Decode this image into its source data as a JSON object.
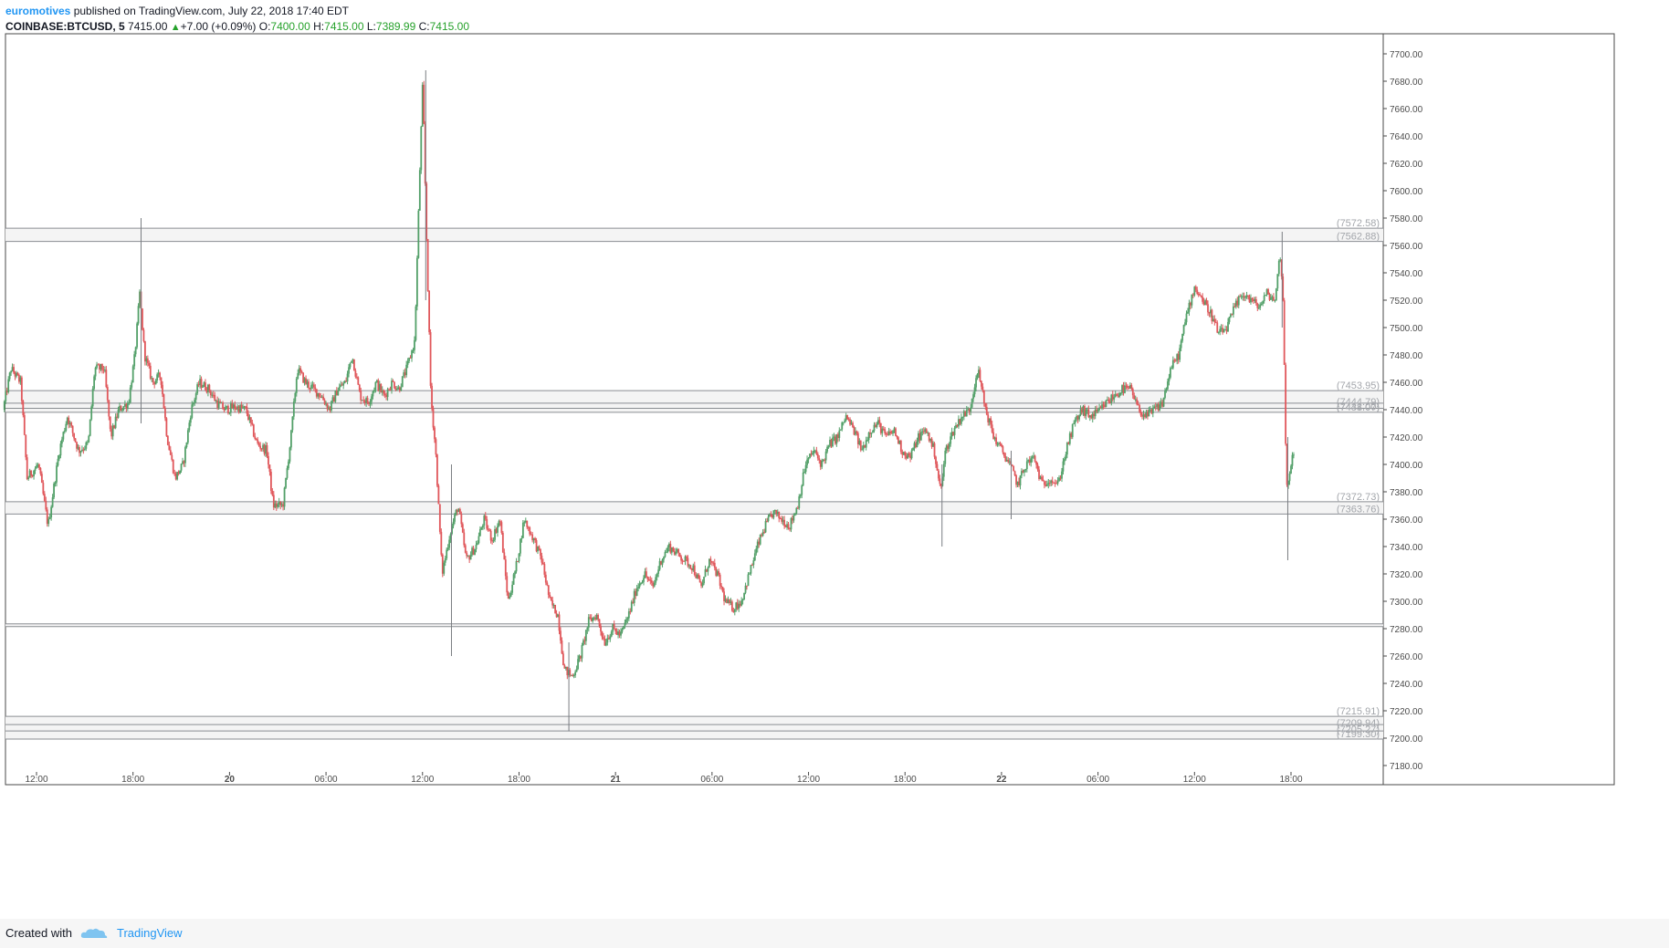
{
  "header": {
    "author": "euromotives",
    "published": "published on TradingView.com, July 22, 2018 17:40 EDT",
    "symbol": "COINBASE:BTCUSD, 5",
    "last": "7415.00",
    "change": "+7.00 (+0.09%)",
    "o_label": "O:",
    "o_value": "7400.00",
    "h_label": "H:",
    "h_value": "7415.00",
    "l_label": "L:",
    "l_value": "7389.99",
    "c_label": "C:",
    "c_value": "7415.00"
  },
  "footer": {
    "created_with": "Created with",
    "brand": "TradingView"
  },
  "colors": {
    "up": "#53a069",
    "down": "#e0575b",
    "band": "#f4f4f4",
    "level_text": "#a3a6ab"
  },
  "chart_data": {
    "type": "candlestick",
    "title": "",
    "xlabel": "",
    "ylabel": "",
    "ylim": [
      7180,
      7700
    ],
    "y_ticks": [
      7180,
      7200,
      7220,
      7240,
      7260,
      7280,
      7300,
      7320,
      7340,
      7360,
      7380,
      7400,
      7420,
      7440,
      7460,
      7480,
      7500,
      7520,
      7540,
      7560,
      7580,
      7600,
      7620,
      7640,
      7660,
      7680,
      7700
    ],
    "x_range_hours": [
      -3.4,
      82.0
    ],
    "x_ticks": [
      {
        "t": 12,
        "label": "12:00"
      },
      {
        "t": 18,
        "label": "18:00"
      },
      {
        "t": 24,
        "label": "20"
      },
      {
        "t": 30,
        "label": "06:00"
      },
      {
        "t": 36,
        "label": "12:00"
      },
      {
        "t": 42,
        "label": "18:00"
      },
      {
        "t": 48,
        "label": "21"
      },
      {
        "t": 54,
        "label": "06:00"
      },
      {
        "t": 60,
        "label": "12:00"
      },
      {
        "t": 66,
        "label": "18:00"
      },
      {
        "t": 72,
        "label": "22"
      },
      {
        "t": 78,
        "label": "06:00"
      },
      {
        "t": 84,
        "label": "12:00"
      },
      {
        "t": 90,
        "label": "18:00"
      }
    ],
    "bands": [
      {
        "low": 7562.88,
        "high": 7572.58,
        "label_low": "(7562.88)",
        "label_high": "(7572.58)"
      },
      {
        "low": 7438.07,
        "high": 7453.95,
        "label_low": "(7438.07)",
        "label_high": "(7453.95)"
      },
      {
        "low": 7363.76,
        "high": 7372.73,
        "label_low": "(7363.76)",
        "label_high": "(7372.73)"
      },
      {
        "low": 7281.5,
        "high": 7283.5,
        "label_low": "",
        "label_high": ""
      },
      {
        "low": 7199.3,
        "high": 7215.91,
        "label_low": "(7199.30)",
        "label_high": "(7215.91)"
      }
    ],
    "extra_levels": [
      {
        "value": 7444.79,
        "label": "(7444.79)"
      },
      {
        "value": 7441.0,
        "label": "(7441.00)"
      },
      {
        "value": 7209.94,
        "label": "(7209.94)"
      },
      {
        "value": 7205.27,
        "label": "(7205.27)"
      }
    ],
    "price_path": [
      {
        "t": 10.0,
        "p": 7440
      },
      {
        "t": 10.5,
        "p": 7470
      },
      {
        "t": 11.1,
        "p": 7460
      },
      {
        "t": 11.5,
        "p": 7390
      },
      {
        "t": 12.2,
        "p": 7400
      },
      {
        "t": 12.8,
        "p": 7355
      },
      {
        "t": 13.5,
        "p": 7410
      },
      {
        "t": 14.0,
        "p": 7435
      },
      {
        "t": 14.7,
        "p": 7410
      },
      {
        "t": 15.3,
        "p": 7415
      },
      {
        "t": 15.7,
        "p": 7470
      },
      {
        "t": 16.3,
        "p": 7470
      },
      {
        "t": 16.7,
        "p": 7420
      },
      {
        "t": 17.2,
        "p": 7440
      },
      {
        "t": 17.8,
        "p": 7445
      },
      {
        "t": 18.2,
        "p": 7480
      },
      {
        "t": 18.5,
        "p": 7525
      },
      {
        "t": 18.8,
        "p": 7480
      },
      {
        "t": 19.3,
        "p": 7460
      },
      {
        "t": 19.8,
        "p": 7465
      },
      {
        "t": 20.2,
        "p": 7420
      },
      {
        "t": 20.7,
        "p": 7390
      },
      {
        "t": 21.2,
        "p": 7400
      },
      {
        "t": 21.7,
        "p": 7440
      },
      {
        "t": 22.2,
        "p": 7460
      },
      {
        "t": 22.8,
        "p": 7455
      },
      {
        "t": 23.3,
        "p": 7445
      },
      {
        "t": 23.8,
        "p": 7440
      },
      {
        "t": 24.4,
        "p": 7442
      },
      {
        "t": 25.1,
        "p": 7440
      },
      {
        "t": 25.8,
        "p": 7415
      },
      {
        "t": 26.4,
        "p": 7410
      },
      {
        "t": 26.8,
        "p": 7370
      },
      {
        "t": 27.4,
        "p": 7370
      },
      {
        "t": 27.9,
        "p": 7420
      },
      {
        "t": 28.3,
        "p": 7470
      },
      {
        "t": 28.8,
        "p": 7460
      },
      {
        "t": 29.3,
        "p": 7455
      },
      {
        "t": 29.8,
        "p": 7450
      },
      {
        "t": 30.3,
        "p": 7440
      },
      {
        "t": 30.8,
        "p": 7455
      },
      {
        "t": 31.3,
        "p": 7460
      },
      {
        "t": 31.7,
        "p": 7480
      },
      {
        "t": 32.2,
        "p": 7450
      },
      {
        "t": 32.7,
        "p": 7445
      },
      {
        "t": 33.2,
        "p": 7460
      },
      {
        "t": 33.7,
        "p": 7450
      },
      {
        "t": 34.2,
        "p": 7460
      },
      {
        "t": 34.6,
        "p": 7455
      },
      {
        "t": 35.1,
        "p": 7470
      },
      {
        "t": 35.6,
        "p": 7490
      },
      {
        "t": 35.9,
        "p": 7610
      },
      {
        "t": 36.1,
        "p": 7680
      },
      {
        "t": 36.3,
        "p": 7580
      },
      {
        "t": 36.6,
        "p": 7450
      },
      {
        "t": 36.9,
        "p": 7410
      },
      {
        "t": 37.3,
        "p": 7320
      },
      {
        "t": 37.8,
        "p": 7350
      },
      {
        "t": 38.3,
        "p": 7370
      },
      {
        "t": 38.8,
        "p": 7330
      },
      {
        "t": 39.4,
        "p": 7340
      },
      {
        "t": 39.9,
        "p": 7360
      },
      {
        "t": 40.4,
        "p": 7345
      },
      {
        "t": 40.9,
        "p": 7360
      },
      {
        "t": 41.4,
        "p": 7300
      },
      {
        "t": 41.9,
        "p": 7325
      },
      {
        "t": 42.4,
        "p": 7360
      },
      {
        "t": 43.0,
        "p": 7345
      },
      {
        "t": 43.5,
        "p": 7330
      },
      {
        "t": 44.0,
        "p": 7300
      },
      {
        "t": 44.5,
        "p": 7290
      },
      {
        "t": 44.9,
        "p": 7250
      },
      {
        "t": 45.4,
        "p": 7245
      },
      {
        "t": 45.9,
        "p": 7260
      },
      {
        "t": 46.4,
        "p": 7285
      },
      {
        "t": 46.9,
        "p": 7290
      },
      {
        "t": 47.4,
        "p": 7270
      },
      {
        "t": 47.9,
        "p": 7280
      },
      {
        "t": 48.4,
        "p": 7275
      },
      {
        "t": 48.9,
        "p": 7290
      },
      {
        "t": 49.4,
        "p": 7310
      },
      {
        "t": 49.9,
        "p": 7320
      },
      {
        "t": 50.4,
        "p": 7310
      },
      {
        "t": 50.9,
        "p": 7330
      },
      {
        "t": 51.4,
        "p": 7340
      },
      {
        "t": 51.9,
        "p": 7335
      },
      {
        "t": 52.4,
        "p": 7330
      },
      {
        "t": 52.9,
        "p": 7325
      },
      {
        "t": 53.4,
        "p": 7310
      },
      {
        "t": 53.9,
        "p": 7330
      },
      {
        "t": 54.4,
        "p": 7320
      },
      {
        "t": 54.9,
        "p": 7300
      },
      {
        "t": 55.4,
        "p": 7295
      },
      {
        "t": 55.9,
        "p": 7300
      },
      {
        "t": 56.4,
        "p": 7320
      },
      {
        "t": 56.9,
        "p": 7340
      },
      {
        "t": 57.4,
        "p": 7355
      },
      {
        "t": 57.9,
        "p": 7365
      },
      {
        "t": 58.4,
        "p": 7360
      },
      {
        "t": 58.9,
        "p": 7355
      },
      {
        "t": 59.4,
        "p": 7370
      },
      {
        "t": 59.9,
        "p": 7400
      },
      {
        "t": 60.4,
        "p": 7410
      },
      {
        "t": 60.9,
        "p": 7400
      },
      {
        "t": 61.4,
        "p": 7415
      },
      {
        "t": 61.9,
        "p": 7420
      },
      {
        "t": 62.4,
        "p": 7435
      },
      {
        "t": 62.9,
        "p": 7425
      },
      {
        "t": 63.4,
        "p": 7410
      },
      {
        "t": 63.9,
        "p": 7425
      },
      {
        "t": 64.4,
        "p": 7430
      },
      {
        "t": 64.9,
        "p": 7420
      },
      {
        "t": 65.4,
        "p": 7425
      },
      {
        "t": 65.9,
        "p": 7410
      },
      {
        "t": 66.4,
        "p": 7405
      },
      {
        "t": 66.9,
        "p": 7420
      },
      {
        "t": 67.4,
        "p": 7425
      },
      {
        "t": 67.9,
        "p": 7410
      },
      {
        "t": 68.3,
        "p": 7380
      },
      {
        "t": 68.6,
        "p": 7410
      },
      {
        "t": 69.1,
        "p": 7425
      },
      {
        "t": 69.6,
        "p": 7435
      },
      {
        "t": 70.1,
        "p": 7440
      },
      {
        "t": 70.6,
        "p": 7470
      },
      {
        "t": 71.1,
        "p": 7440
      },
      {
        "t": 71.6,
        "p": 7420
      },
      {
        "t": 72.1,
        "p": 7410
      },
      {
        "t": 72.6,
        "p": 7400
      },
      {
        "t": 73.1,
        "p": 7385
      },
      {
        "t": 73.6,
        "p": 7400
      },
      {
        "t": 74.1,
        "p": 7405
      },
      {
        "t": 74.6,
        "p": 7385
      },
      {
        "t": 75.1,
        "p": 7390
      },
      {
        "t": 75.6,
        "p": 7385
      },
      {
        "t": 76.1,
        "p": 7410
      },
      {
        "t": 76.6,
        "p": 7430
      },
      {
        "t": 77.1,
        "p": 7440
      },
      {
        "t": 77.6,
        "p": 7435
      },
      {
        "t": 78.1,
        "p": 7438
      },
      {
        "t": 78.6,
        "p": 7445
      },
      {
        "t": 79.1,
        "p": 7450
      },
      {
        "t": 79.6,
        "p": 7455
      },
      {
        "t": 80.1,
        "p": 7455
      },
      {
        "t": 80.6,
        "p": 7440
      },
      {
        "t": 81.1,
        "p": 7435
      },
      {
        "t": 81.6,
        "p": 7440
      },
      {
        "t": 82.1,
        "p": 7445
      },
      {
        "t": 82.6,
        "p": 7470
      },
      {
        "t": 83.1,
        "p": 7480
      },
      {
        "t": 83.6,
        "p": 7510
      },
      {
        "t": 84.1,
        "p": 7530
      },
      {
        "t": 84.6,
        "p": 7520
      },
      {
        "t": 85.1,
        "p": 7510
      },
      {
        "t": 85.6,
        "p": 7495
      },
      {
        "t": 86.1,
        "p": 7500
      },
      {
        "t": 86.6,
        "p": 7515
      },
      {
        "t": 87.1,
        "p": 7525
      },
      {
        "t": 87.6,
        "p": 7520
      },
      {
        "t": 88.1,
        "p": 7515
      },
      {
        "t": 88.6,
        "p": 7525
      },
      {
        "t": 89.1,
        "p": 7520
      },
      {
        "t": 89.4,
        "p": 7555
      },
      {
        "t": 89.6,
        "p": 7520
      },
      {
        "t": 89.8,
        "p": 7380
      },
      {
        "t": 90.0,
        "p": 7395
      },
      {
        "t": 90.2,
        "p": 7410
      }
    ],
    "spikes": [
      {
        "t": 18.5,
        "high": 7580,
        "low": 7430
      },
      {
        "t": 36.2,
        "high": 7688,
        "low": 7520
      },
      {
        "t": 37.8,
        "high": 7400,
        "low": 7260
      },
      {
        "t": 45.1,
        "high": 7270,
        "low": 7205
      },
      {
        "t": 68.3,
        "high": 7400,
        "low": 7340
      },
      {
        "t": 72.6,
        "high": 7410,
        "low": 7360
      },
      {
        "t": 89.45,
        "high": 7570,
        "low": 7500
      },
      {
        "t": 89.8,
        "high": 7420,
        "low": 7330
      }
    ]
  }
}
